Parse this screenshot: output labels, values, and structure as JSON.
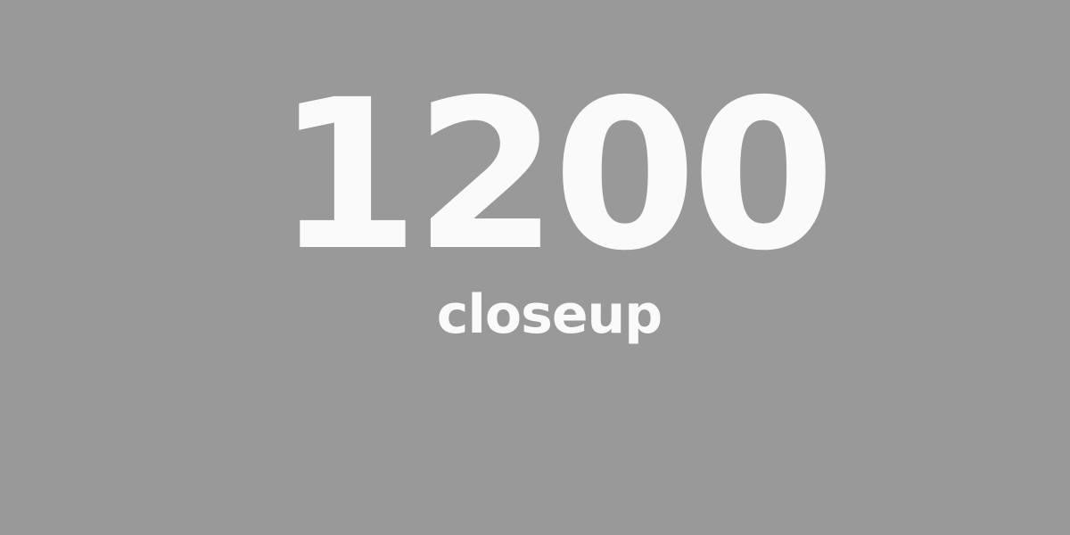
{
  "placeholder": {
    "number": "1200",
    "caption": "closeup"
  },
  "colors": {
    "background": "#999999",
    "text": "#fafafa"
  }
}
